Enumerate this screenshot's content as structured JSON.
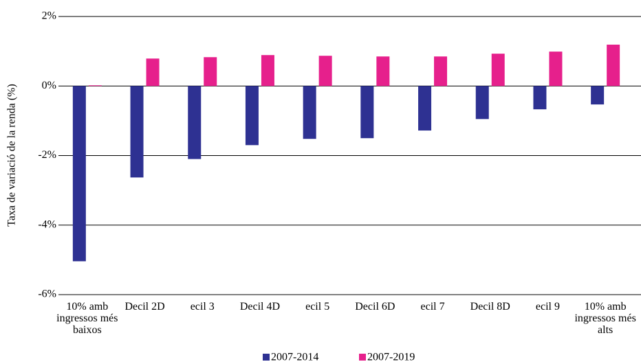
{
  "chart_data": {
    "type": "bar",
    "y_label": "Taxa de variació de la renda (%)",
    "categories": [
      "10% amb ingressos més baixos",
      "Decil 2D",
      "ecil 3",
      "Decil 4D",
      "ecil 5",
      "Decil 6D",
      "ecil 7",
      "Decil 8D",
      "ecil 9",
      "10% amb ingressos més alts"
    ],
    "series": [
      {
        "name": "2007-2014",
        "color": "#2e3192",
        "values": [
          -5.04,
          -2.63,
          -2.1,
          -1.7,
          -1.52,
          -1.5,
          -1.28,
          -0.95,
          -0.67,
          -0.53
        ]
      },
      {
        "name": "2007-2019",
        "color": "#e6208c",
        "values": [
          0.02,
          0.79,
          0.83,
          0.89,
          0.87,
          0.85,
          0.85,
          0.93,
          0.99,
          1.19
        ]
      }
    ],
    "ylim": [
      -6,
      2
    ],
    "yticks": [
      {
        "value": -6,
        "label": "-6%"
      },
      {
        "value": -4,
        "label": "-4%"
      },
      {
        "value": -2,
        "label": "-2%"
      },
      {
        "value": 0,
        "label": "0%"
      },
      {
        "value": 2,
        "label": "2%"
      }
    ],
    "grid": true,
    "legend": "bottom"
  }
}
